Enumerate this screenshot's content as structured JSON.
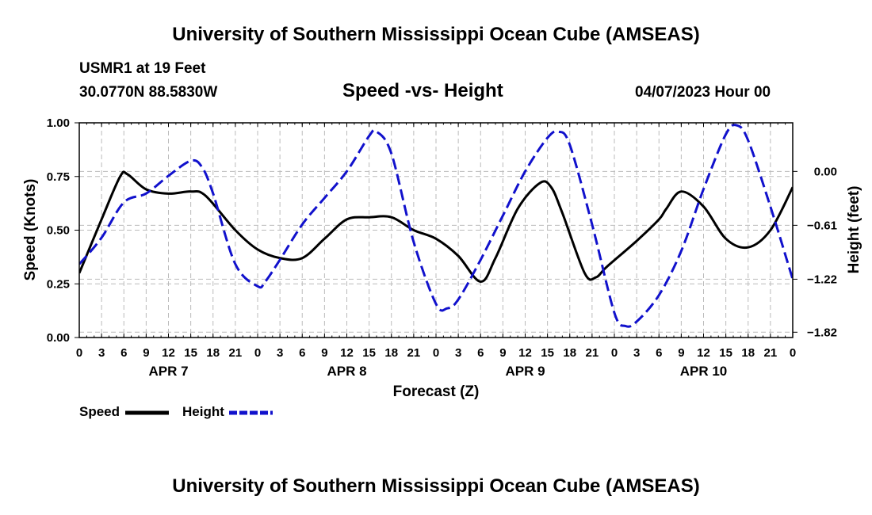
{
  "header": {
    "title": "University of Southern Mississippi Ocean Cube (AMSEAS)",
    "station": "USMR1 at 19 Feet",
    "location": "30.0770N  88.5830W",
    "subtitle": "Speed -vs- Height",
    "datetime": "04/07/2023 Hour 00"
  },
  "footer": {
    "title": "University of Southern Mississippi Ocean Cube (AMSEAS)"
  },
  "legend": {
    "speed_label": "Speed",
    "height_label": "Height"
  },
  "chart_data": {
    "type": "line",
    "title": "Speed -vs- Height",
    "xlabel": "Forecast (Z)",
    "ylabel": "Speed (Knots)",
    "y2label": "Height (feet)",
    "xlim": [
      0,
      96
    ],
    "ylim": [
      0,
      1
    ],
    "y2lim": [
      -1.88,
      0.55
    ],
    "x_ticks": [
      0,
      3,
      6,
      9,
      12,
      15,
      18,
      21,
      24,
      27,
      30,
      33,
      36,
      39,
      42,
      45,
      48,
      51,
      54,
      57,
      60,
      63,
      66,
      69,
      72,
      75,
      78,
      81,
      84,
      87,
      90,
      93,
      96
    ],
    "x_tick_labels": [
      "0",
      "3",
      "6",
      "9",
      "12",
      "15",
      "18",
      "21",
      "0",
      "3",
      "6",
      "9",
      "12",
      "15",
      "18",
      "21",
      "0",
      "3",
      "6",
      "9",
      "12",
      "15",
      "18",
      "21",
      "0",
      "3",
      "6",
      "9",
      "12",
      "15",
      "18",
      "21",
      "0"
    ],
    "date_labels": [
      {
        "x": 12,
        "label": "APR 7"
      },
      {
        "x": 36,
        "label": "APR 8"
      },
      {
        "x": 60,
        "label": "APR 9"
      },
      {
        "x": 84,
        "label": "APR 10"
      }
    ],
    "y_ticks": [
      0,
      0.25,
      0.5,
      0.75,
      1.0
    ],
    "y_tick_labels": [
      "0.00",
      "0.25",
      "0.50",
      "0.75",
      "1.00"
    ],
    "y2_ticks": [
      0.0,
      -0.61,
      -1.22,
      -1.82
    ],
    "y2_tick_labels": [
      "0.00",
      "−0.61",
      "−1.22",
      "−1.82"
    ],
    "grid": true,
    "series": [
      {
        "name": "Speed",
        "axis": "left",
        "color": "#000000",
        "style": "solid",
        "x": [
          0,
          3,
          5.5,
          6.5,
          9,
          12,
          15,
          17,
          21,
          24,
          27,
          30,
          33,
          36,
          39,
          42,
          45,
          48,
          51,
          54,
          56,
          59,
          62,
          63.5,
          65,
          68,
          69.5,
          71,
          75,
          78,
          79,
          81,
          84,
          87,
          90,
          93,
          96
        ],
        "values": [
          0.3,
          0.55,
          0.75,
          0.76,
          0.69,
          0.67,
          0.68,
          0.66,
          0.5,
          0.41,
          0.37,
          0.37,
          0.46,
          0.55,
          0.56,
          0.56,
          0.5,
          0.46,
          0.38,
          0.26,
          0.37,
          0.6,
          0.72,
          0.7,
          0.58,
          0.3,
          0.28,
          0.33,
          0.45,
          0.55,
          0.6,
          0.68,
          0.61,
          0.46,
          0.42,
          0.5,
          0.7
        ]
      },
      {
        "name": "Height",
        "axis": "right",
        "color": "#1111cc",
        "style": "dashed",
        "x": [
          0,
          3,
          6,
          9,
          12,
          15,
          16.5,
          18,
          21,
          24,
          25,
          27,
          30,
          33,
          36,
          39,
          40,
          42,
          45,
          48,
          49.5,
          51,
          54,
          57,
          60,
          63,
          64.5,
          66,
          69,
          72,
          73.5,
          75,
          78,
          81,
          84,
          87,
          88.5,
          90,
          93,
          96
        ],
        "values": [
          -1.05,
          -0.75,
          -0.35,
          -0.25,
          -0.05,
          0.12,
          0.05,
          -0.25,
          -1.05,
          -1.3,
          -1.25,
          -1.0,
          -0.6,
          -0.3,
          0.0,
          0.4,
          0.45,
          0.2,
          -0.8,
          -1.5,
          -1.55,
          -1.45,
          -1.0,
          -0.5,
          0.0,
          0.38,
          0.45,
          0.3,
          -0.6,
          -1.6,
          -1.75,
          -1.7,
          -1.4,
          -0.9,
          -0.2,
          0.42,
          0.52,
          0.35,
          -0.4,
          -1.22
        ]
      }
    ]
  }
}
